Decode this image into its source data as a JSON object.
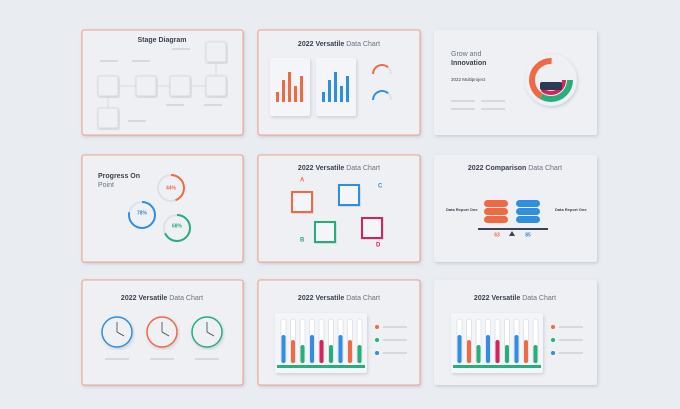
{
  "slides": [
    {
      "title_bold": "Stage Diagram"
    },
    {
      "title_bold": "2022 Versatile",
      "title_light": "Data Chart"
    },
    {
      "title_light": "Grow and",
      "title_bold": "Innovation",
      "subtitle": "2022 Multiproject"
    },
    {
      "title_bold": "Progress On",
      "title_light": "Point",
      "rings": [
        "44%",
        "78%",
        "68%"
      ]
    },
    {
      "title_bold": "2022 Versatile",
      "title_light": "Data Chart",
      "letters": [
        "A",
        "B",
        "C",
        "D"
      ]
    },
    {
      "title_bold": "2022 Comparison",
      "title_light": "Data Chart",
      "labels": [
        "Data Report One",
        "Data Report One"
      ],
      "values": [
        "63",
        "85"
      ]
    },
    {
      "title_bold": "2022 Versatile",
      "title_light": "Data Chart"
    },
    {
      "title_bold": "2022 Versatile",
      "title_light": "Data Chart"
    },
    {
      "title_bold": "2022 Versatile",
      "title_light": "Data Chart"
    }
  ]
}
